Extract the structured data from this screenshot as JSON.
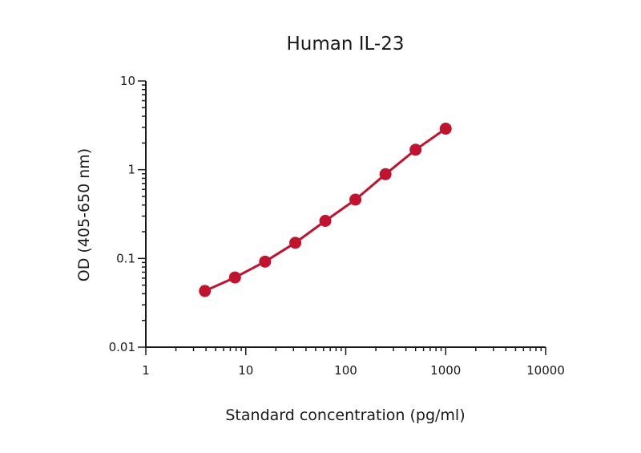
{
  "chart_data": {
    "type": "line",
    "title": "Human IL-23",
    "xlabel": "Standard concentration (pg/ml)",
    "ylabel": "OD (405-650 nm)",
    "x_scale": "log",
    "y_scale": "log",
    "xlim": [
      1,
      10000
    ],
    "ylim": [
      0.01,
      10
    ],
    "x_ticks": [
      {
        "value": 1,
        "label": "1"
      },
      {
        "value": 10,
        "label": "10"
      },
      {
        "value": 100,
        "label": "100"
      },
      {
        "value": 1000,
        "label": "1000"
      },
      {
        "value": 10000,
        "label": "10000"
      }
    ],
    "y_ticks": [
      {
        "value": 0.01,
        "label": "0.01"
      },
      {
        "value": 0.1,
        "label": "0.1"
      },
      {
        "value": 1,
        "label": "1"
      },
      {
        "value": 10,
        "label": "10"
      }
    ],
    "grid": false,
    "series": [
      {
        "color": "#c0142e",
        "points": [
          {
            "x": 3.9,
            "y": 0.043
          },
          {
            "x": 7.8,
            "y": 0.061
          },
          {
            "x": 15.6,
            "y": 0.092
          },
          {
            "x": 31.3,
            "y": 0.15
          },
          {
            "x": 62.5,
            "y": 0.265
          },
          {
            "x": 125,
            "y": 0.46
          },
          {
            "x": 250,
            "y": 0.89
          },
          {
            "x": 500,
            "y": 1.68
          },
          {
            "x": 1000,
            "y": 2.9
          }
        ]
      }
    ]
  }
}
